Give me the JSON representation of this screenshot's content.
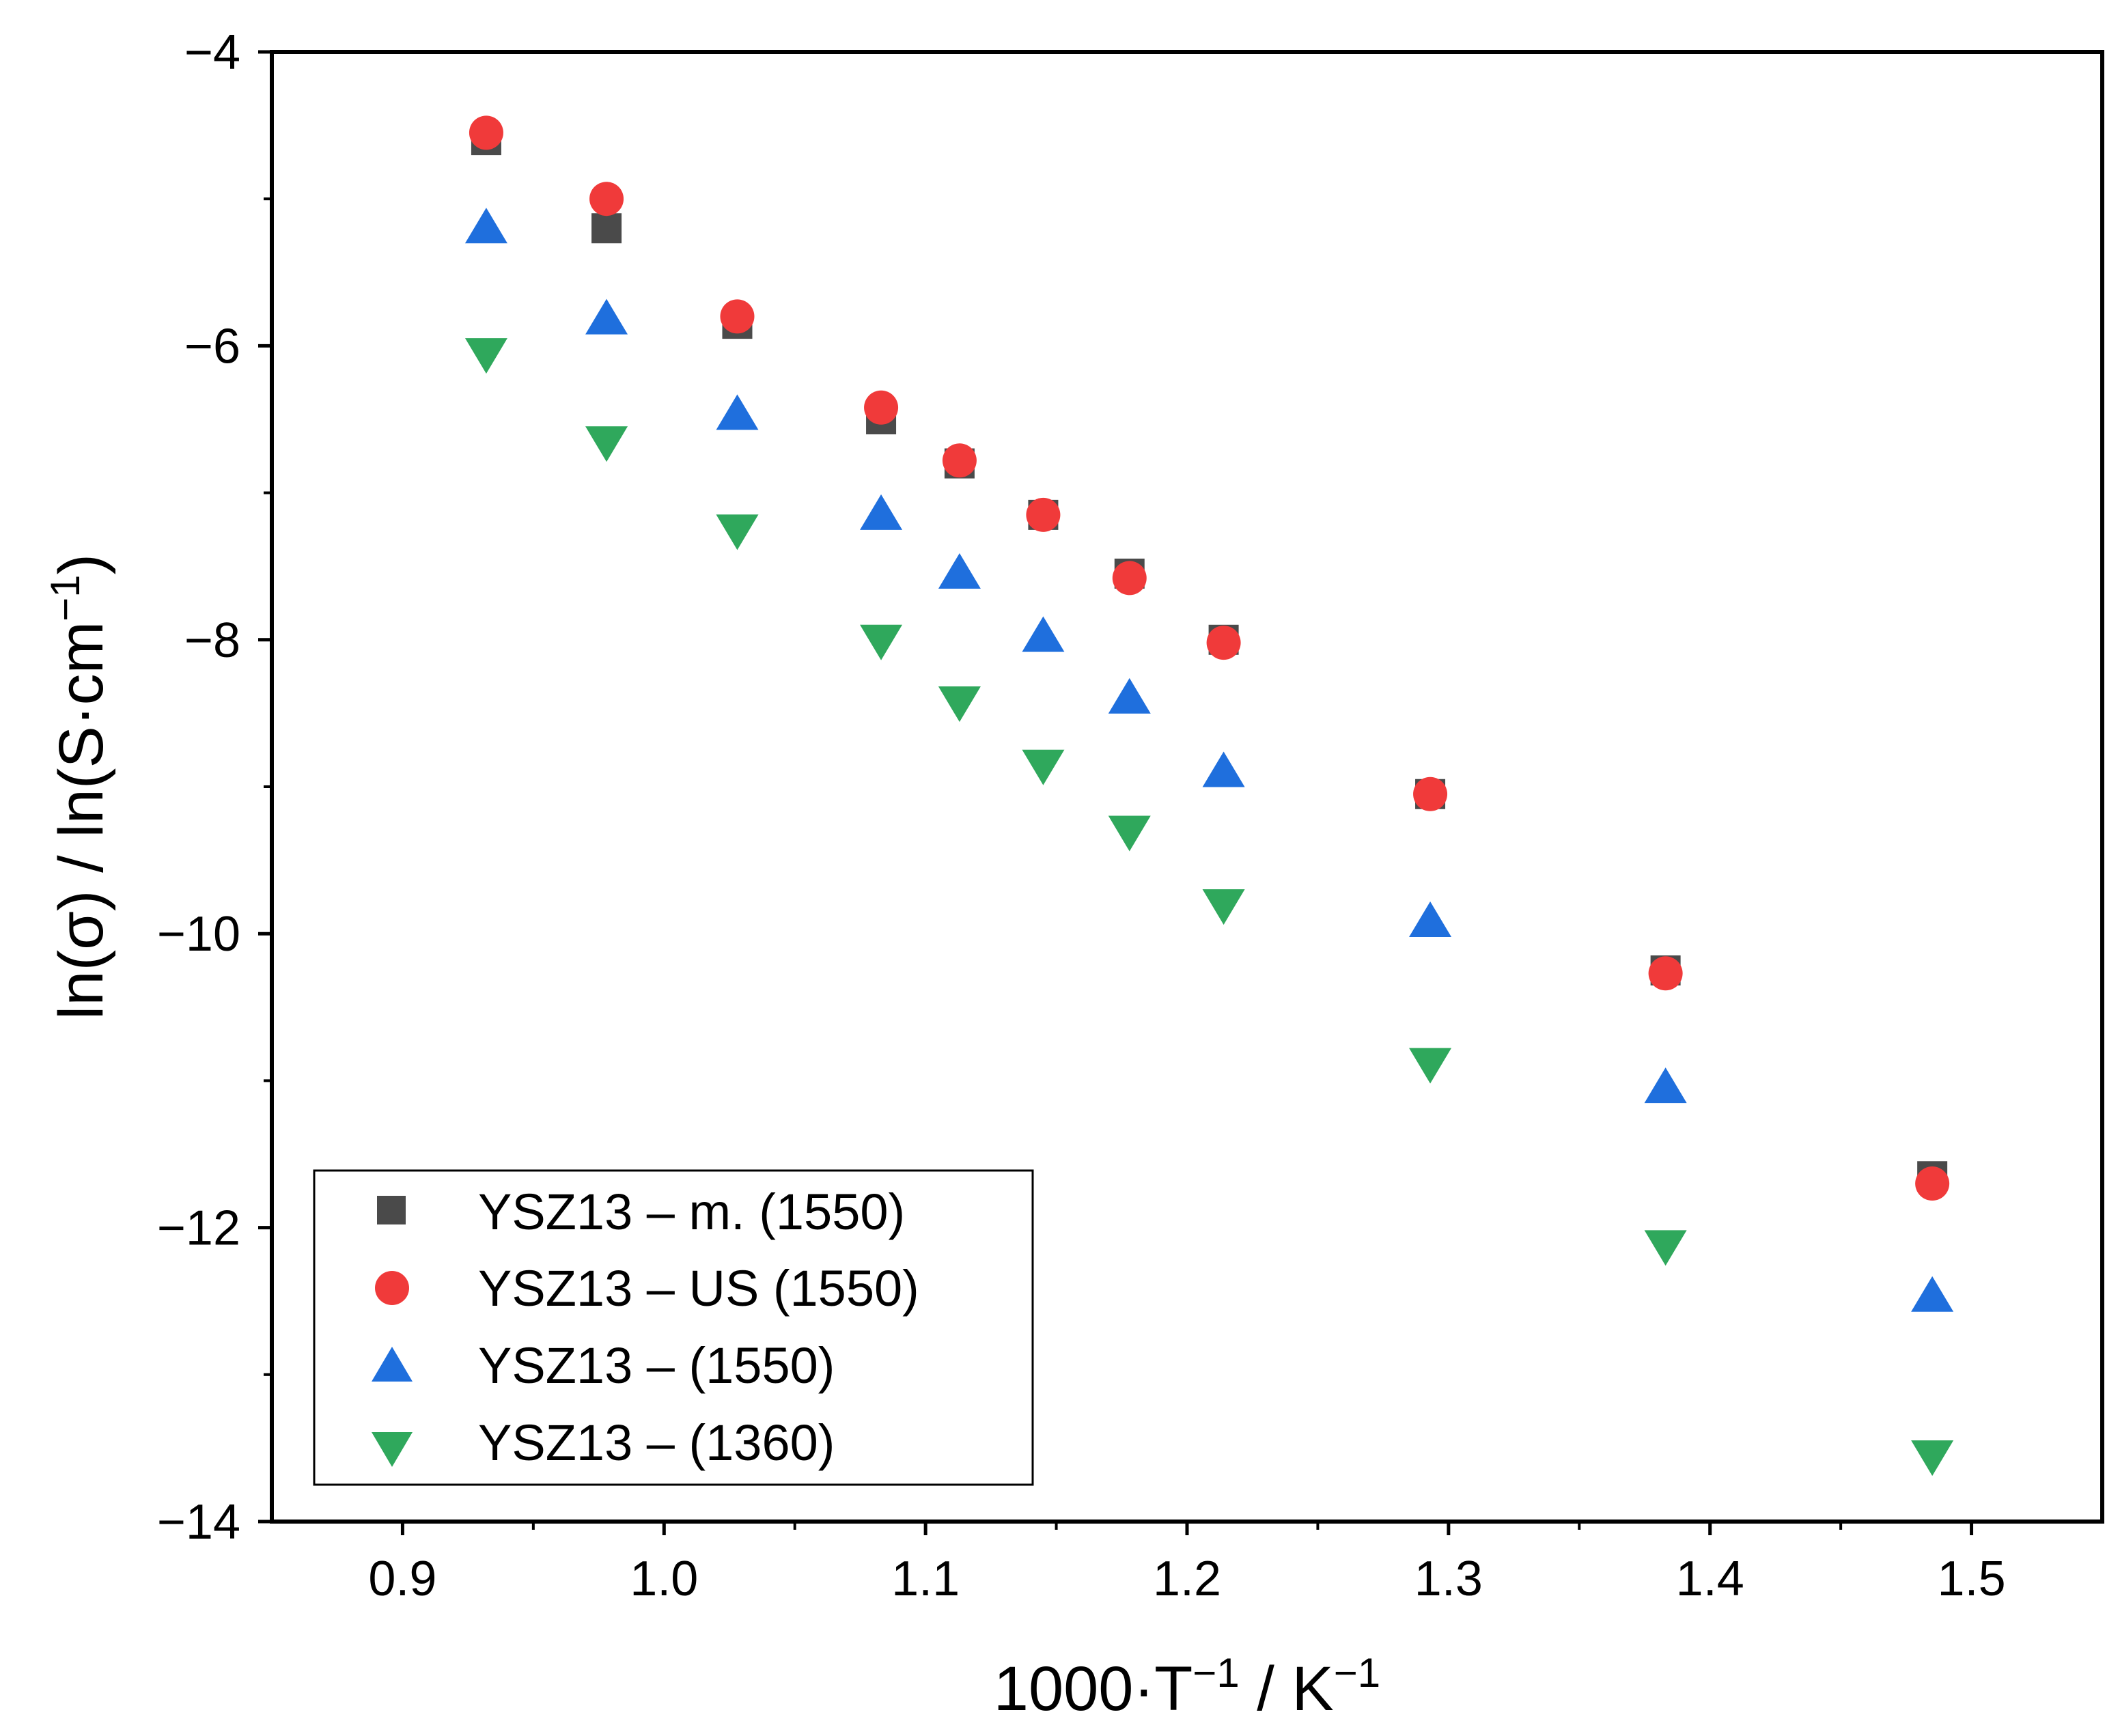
{
  "chart_data": {
    "type": "scatter",
    "xlabel": "1000·T",
    "xlabel_sup1": "−1",
    "xlabel_mid": " / K",
    "xlabel_sup2": "−1",
    "ylabel": "ln(σ) / ln(S·cm",
    "ylabel_sup": "−1",
    "ylabel_end": ")",
    "xlim": [
      0.85,
      1.55
    ],
    "ylim": [
      -14,
      -4
    ],
    "x_ticks": [
      0.9,
      1.0,
      1.1,
      1.2,
      1.3,
      1.4,
      1.5
    ],
    "x_tick_labels": [
      "0.9",
      "1.0",
      "1.1",
      "1.2",
      "1.3",
      "1.4",
      "1.5"
    ],
    "y_ticks": [
      -14,
      -12,
      -10,
      -8,
      -6,
      -4
    ],
    "y_tick_labels": [
      "−14",
      "−12",
      "−10",
      "−8",
      "−6",
      "−4"
    ],
    "legend_position": "bottom-left",
    "series": [
      {
        "name": "YSZ13 – m. (1550)",
        "marker": "square",
        "color": "#4a4a4a",
        "x": [
          0.932,
          0.978,
          1.028,
          1.083,
          1.113,
          1.145,
          1.178,
          1.214,
          1.293,
          1.383,
          1.485
        ],
        "y": [
          -4.6,
          -5.2,
          -5.85,
          -6.5,
          -6.8,
          -7.15,
          -7.55,
          -8.0,
          -9.05,
          -10.25,
          -11.65
        ]
      },
      {
        "name": "YSZ13 – US (1550)",
        "marker": "circle",
        "color": "#f03a3a",
        "x": [
          0.932,
          0.978,
          1.028,
          1.083,
          1.113,
          1.145,
          1.178,
          1.214,
          1.293,
          1.383,
          1.485
        ],
        "y": [
          -4.55,
          -5.0,
          -5.8,
          -6.42,
          -6.78,
          -7.15,
          -7.58,
          -8.02,
          -9.05,
          -10.27,
          -11.7
        ]
      },
      {
        "name": "YSZ13 – (1550)",
        "marker": "triangle-up",
        "color": "#1f6fdd",
        "x": [
          0.932,
          0.978,
          1.028,
          1.083,
          1.113,
          1.145,
          1.178,
          1.214,
          1.293,
          1.383,
          1.485
        ],
        "y": [
          -5.2,
          -5.82,
          -6.47,
          -7.15,
          -7.55,
          -7.98,
          -8.4,
          -8.9,
          -9.92,
          -11.05,
          -12.47
        ]
      },
      {
        "name": "YSZ13 – (1360)",
        "marker": "triangle-down",
        "color": "#2fa85c",
        "x": [
          0.932,
          0.978,
          1.028,
          1.083,
          1.113,
          1.145,
          1.178,
          1.214,
          1.293,
          1.383,
          1.485
        ],
        "y": [
          -6.05,
          -6.65,
          -7.25,
          -8.0,
          -8.42,
          -8.85,
          -9.3,
          -9.8,
          -10.88,
          -12.12,
          -13.55
        ]
      }
    ]
  }
}
